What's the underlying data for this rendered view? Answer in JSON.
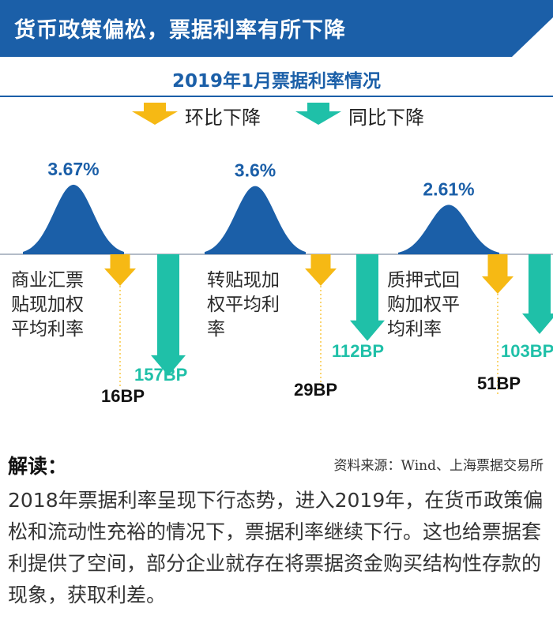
{
  "header": {
    "title": "货币政策偏松，票据利率有所下降",
    "color": "#1b5fa8"
  },
  "subheader": {
    "title": "2019年1月票据利率情况"
  },
  "legend": [
    {
      "label": "环比下降",
      "color": "#f6b914",
      "icon": "down-arrow-icon"
    },
    {
      "label": "同比下降",
      "color": "#1fc0a8",
      "icon": "down-arrow-icon"
    }
  ],
  "chart_data": {
    "type": "bar",
    "categories": [
      "商业汇票贴现加权平均利率",
      "转贴现加权平均利率",
      "质押式回购加权平均利率"
    ],
    "category_lines": [
      [
        "商业汇票",
        "贴现加权",
        "平均利率"
      ],
      [
        "转贴现加",
        "权平均利",
        "率"
      ],
      [
        "质押式回",
        "购加权平",
        "均利率"
      ]
    ],
    "rate_labels": [
      "3.67%",
      "3.6%",
      "2.61%"
    ],
    "rates": [
      3.67,
      3.6,
      2.61
    ],
    "series": [
      {
        "name": "环比下降",
        "values": [
          16,
          29,
          51
        ],
        "labels": [
          "16BP",
          "29BP",
          "51BP"
        ],
        "color": "#f6b914"
      },
      {
        "name": "同比下降",
        "values": [
          157,
          112,
          103
        ],
        "labels": [
          "157BP",
          "112BP",
          "103BP"
        ],
        "color": "#1fc0a8"
      }
    ],
    "bell_color": "#1b5fa8"
  },
  "reading": {
    "title": "解读：",
    "source": "资料来源：Wind、上海票据交易所",
    "text": "2018年票据利率呈现下行态势，进入2019年，在货币政策偏松和流动性充裕的情况下，票据利率继续下行。这也给票据套利提供了空间，部分企业就存在将票据资金购买结构性存款的现象，获取利差。"
  }
}
